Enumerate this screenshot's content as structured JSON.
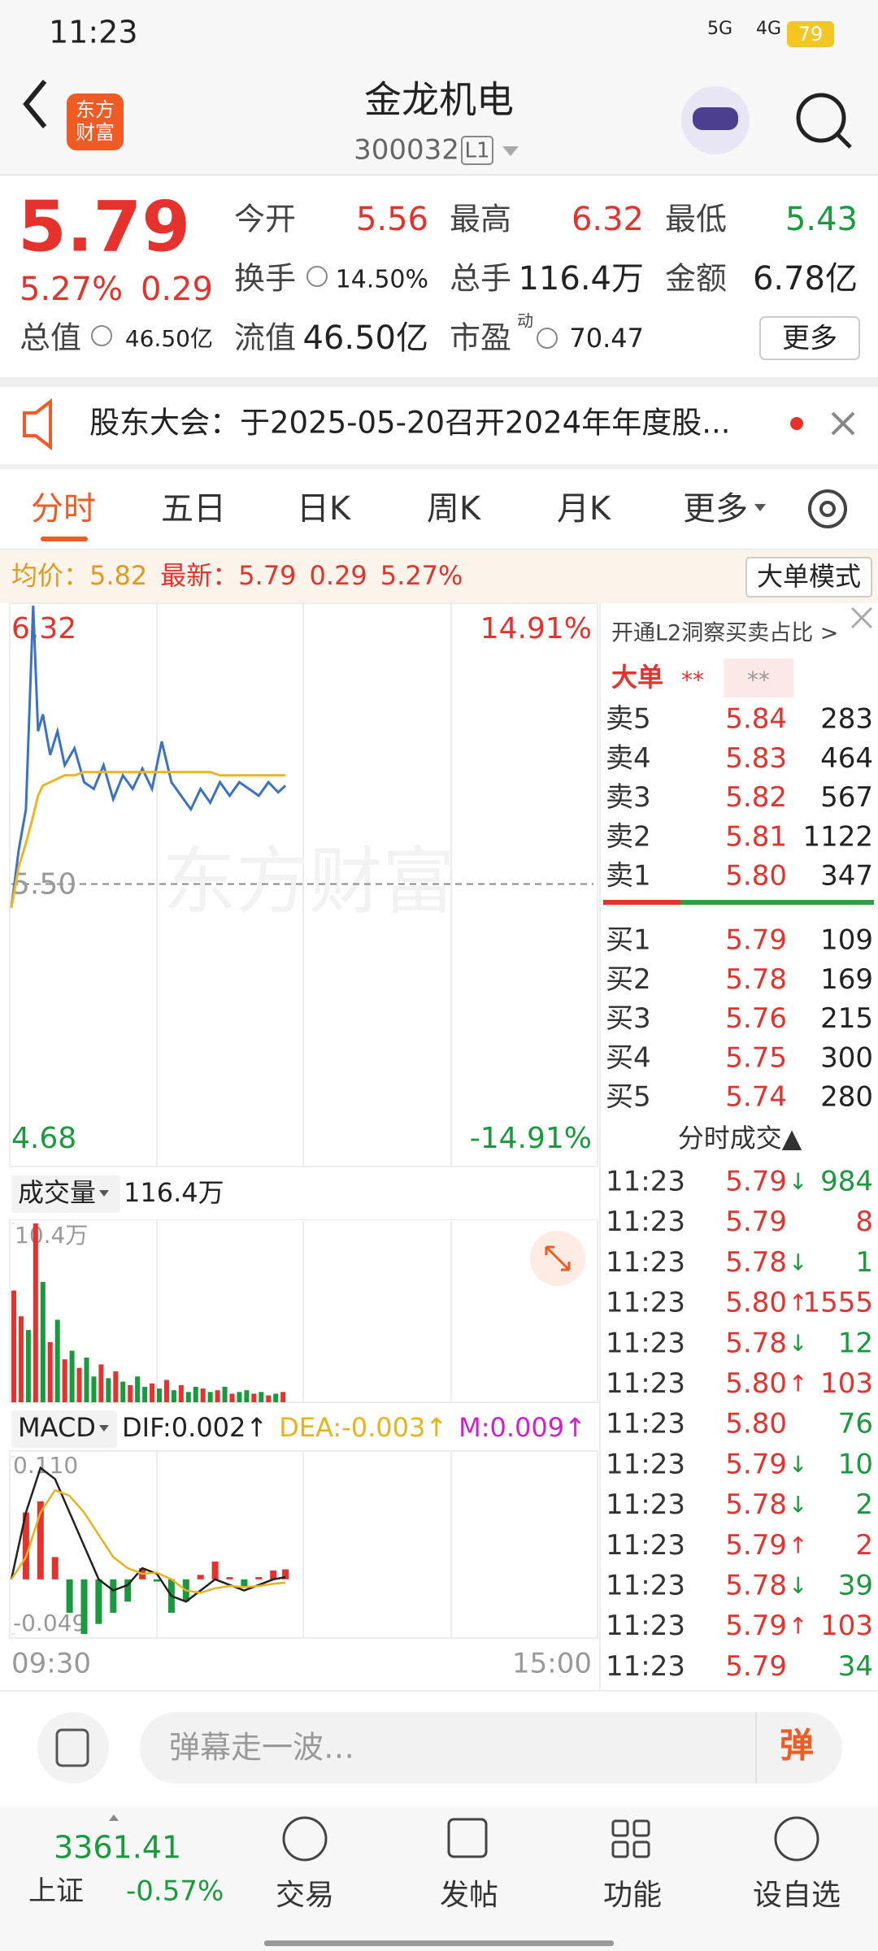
{
  "status_bar": {
    "time": "11:23",
    "net1": "5G",
    "net2": "4G",
    "battery": "79"
  },
  "header": {
    "logo": [
      "东方",
      "财富"
    ],
    "title": "金龙机电",
    "code": "300032",
    "level": "L1"
  },
  "quote": {
    "price": "5.79",
    "change_pct": "5.27%",
    "change": "0.29",
    "fields": [
      {
        "label": "今开",
        "value": "5.56",
        "color": "#e5322d"
      },
      {
        "label": "最高",
        "value": "6.32",
        "color": "#e5322d"
      },
      {
        "label": "最低",
        "value": "5.43",
        "color": "#199a3c"
      },
      {
        "label": "换手",
        "value": "14.50%",
        "color": "#222222"
      },
      {
        "label": "总手",
        "value": "116.4万",
        "color": "#222222"
      },
      {
        "label": "金额",
        "value": "6.78亿",
        "color": "#222222"
      },
      {
        "label": "总值",
        "value": "46.50亿",
        "color": "#222222"
      },
      {
        "label": "流值",
        "value": "46.50亿",
        "color": "#222222"
      },
      {
        "label": "市盈",
        "sup": "动",
        "value": "70.47",
        "color": "#222222"
      }
    ],
    "more": "更多"
  },
  "notice": "股东大会：于2025-05-20召开2024年年度股...",
  "tabs": [
    "分时",
    "五日",
    "日K",
    "周K",
    "月K",
    "更多"
  ],
  "summary": {
    "avg_label": "均价：",
    "avg": "5.82",
    "last_label": "最新：",
    "last": "5.79",
    "change": "0.29",
    "change_pct": "5.27%",
    "mode": "大单模式"
  },
  "watermark": "东方财富",
  "chart_data": [
    {
      "type": "line",
      "x": [
        0,
        3,
        6,
        9,
        11,
        13,
        16,
        19,
        22,
        26,
        30,
        34,
        38,
        42,
        46,
        50,
        54,
        58,
        62,
        66,
        70,
        74,
        78,
        82,
        86,
        90,
        94,
        98,
        102,
        106,
        110,
        113
      ],
      "xlim": [
        0,
        240
      ],
      "xticks": [
        {
          "value": 0,
          "label": "09:30"
        },
        {
          "value": 240,
          "label": "15:00"
        }
      ],
      "ylim": [
        4.68,
        6.32
      ],
      "yticks": [
        6.32,
        {
          "value": 5.5,
          "label": "5.50"
        },
        4.68
      ],
      "y2lim": [
        -14.91,
        14.91
      ],
      "y2ticks": [
        {
          "value": 14.91,
          "label": "14.91%"
        },
        {
          "value": -14.91,
          "label": "-14.91%"
        }
      ],
      "series": [
        {
          "color": "#3a72c6",
          "values": [
            5.43,
            5.6,
            5.72,
            6.32,
            5.95,
            6.0,
            5.88,
            5.95,
            5.85,
            5.9,
            5.8,
            5.78,
            5.85,
            5.75,
            5.82,
            5.78,
            5.84,
            5.78,
            5.92,
            5.8,
            5.76,
            5.72,
            5.78,
            5.74,
            5.8,
            5.76,
            5.8,
            5.78,
            5.76,
            5.8,
            5.77,
            5.79
          ]
        },
        {
          "color": "#efb426",
          "values": [
            5.43,
            5.55,
            5.62,
            5.7,
            5.76,
            5.79,
            5.8,
            5.81,
            5.82,
            5.82,
            5.83,
            5.83,
            5.83,
            5.83,
            5.83,
            5.83,
            5.83,
            5.83,
            5.83,
            5.83,
            5.83,
            5.83,
            5.83,
            5.83,
            5.82,
            5.82,
            5.82,
            5.82,
            5.82,
            5.82,
            5.82,
            5.82
          ]
        }
      ]
    },
    {
      "type": "bar",
      "label": "成交量",
      "total": "116.4万",
      "x": [
        0,
        3,
        6,
        9,
        12,
        15,
        18,
        21,
        24,
        27,
        30,
        33,
        36,
        39,
        42,
        45,
        48,
        51,
        54,
        57,
        60,
        63,
        66,
        69,
        72,
        75,
        78,
        81,
        84,
        87,
        90,
        93,
        96,
        99,
        102,
        105,
        108,
        111
      ],
      "values": [
        6.5,
        5.0,
        4.2,
        10.4,
        7.0,
        3.5,
        4.8,
        2.5,
        3.0,
        2.0,
        2.6,
        1.5,
        2.2,
        1.4,
        1.8,
        1.2,
        1.0,
        1.5,
        0.9,
        1.1,
        0.8,
        1.3,
        0.7,
        1.0,
        0.6,
        0.9,
        0.8,
        0.6,
        0.7,
        0.9,
        0.5,
        0.6,
        0.7,
        0.5,
        0.6,
        0.4,
        0.5,
        0.6
      ],
      "up": [
        true,
        true,
        false,
        true,
        false,
        true,
        false,
        true,
        false,
        true,
        false,
        false,
        true,
        false,
        true,
        false,
        true,
        false,
        false,
        true,
        false,
        true,
        false,
        true,
        false,
        false,
        true,
        false,
        true,
        false,
        true,
        false,
        false,
        true,
        false,
        true,
        false,
        true
      ],
      "up_color": "#e5322d",
      "down_color": "#199a3c",
      "xlim": [
        0,
        240
      ],
      "ylim": [
        0,
        10.4
      ],
      "yticks": [
        {
          "value": 10.4,
          "label": "10.4万"
        }
      ]
    },
    {
      "type": "macd",
      "label": "MACD",
      "dif_label": "DIF:0.002↑",
      "dea_label": "DEA:-0.003↑",
      "m_label": "M:0.009↑",
      "x": [
        0,
        6,
        12,
        18,
        24,
        30,
        36,
        42,
        48,
        54,
        60,
        66,
        72,
        78,
        84,
        90,
        96,
        102,
        108,
        113
      ],
      "dif": [
        0,
        0.06,
        0.1,
        0.09,
        0.06,
        0.03,
        0.0,
        -0.01,
        -0.005,
        0.01,
        0.005,
        -0.015,
        -0.02,
        -0.01,
        0.0,
        -0.005,
        -0.01,
        -0.005,
        0.0,
        0.002
      ],
      "dea": [
        0,
        0.02,
        0.06,
        0.08,
        0.075,
        0.06,
        0.04,
        0.02,
        0.01,
        0.005,
        0.006,
        0.0,
        -0.01,
        -0.012,
        -0.008,
        -0.006,
        -0.007,
        -0.006,
        -0.004,
        -0.003
      ],
      "m": [
        0,
        0.06,
        0.07,
        0.02,
        -0.03,
        -0.049,
        -0.04,
        -0.03,
        -0.02,
        0.01,
        -0.002,
        -0.03,
        -0.02,
        0.004,
        0.016,
        0.002,
        -0.006,
        0.002,
        0.008,
        0.009
      ],
      "dif_color": "#222222",
      "dea_color": "#e8b21b",
      "m_color": "#d01fd0",
      "up_color": "#e5322d",
      "down_color": "#199a3c",
      "xlim": [
        0,
        240
      ],
      "ylim": [
        -0.049,
        0.11
      ],
      "yticks": [
        {
          "value": 0.11,
          "label": "0.110"
        },
        -0.049
      ]
    }
  ],
  "order_book": {
    "banner": "开通L2洞察买卖占比 >",
    "big_label": "大单",
    "big_a": "**",
    "big_b": "**",
    "sell": [
      {
        "label": "卖5",
        "price": "5.84",
        "volume": "283"
      },
      {
        "label": "卖4",
        "price": "5.83",
        "volume": "464"
      },
      {
        "label": "卖3",
        "price": "5.82",
        "volume": "567"
      },
      {
        "label": "卖2",
        "price": "5.81",
        "volume": "1122"
      },
      {
        "label": "卖1",
        "price": "5.80",
        "volume": "347"
      }
    ],
    "buy": [
      {
        "label": "买1",
        "price": "5.79",
        "volume": "109"
      },
      {
        "label": "买2",
        "price": "5.78",
        "volume": "169"
      },
      {
        "label": "买3",
        "price": "5.76",
        "volume": "215"
      },
      {
        "label": "买4",
        "price": "5.75",
        "volume": "300"
      },
      {
        "label": "买5",
        "price": "5.74",
        "volume": "280"
      }
    ]
  },
  "trades": {
    "title": "分时成交▲",
    "rows": [
      {
        "time": "11:23",
        "price": "5.79",
        "arrow": "↓",
        "volume": "984",
        "color": "#199a3c"
      },
      {
        "time": "11:23",
        "price": "5.79",
        "volume": "8",
        "color": "#e5322d"
      },
      {
        "time": "11:23",
        "price": "5.78",
        "arrow": "↓",
        "volume": "1",
        "color": "#199a3c"
      },
      {
        "time": "11:23",
        "price": "5.80",
        "arrow": "↑",
        "volume": "1555",
        "color": "#e5322d"
      },
      {
        "time": "11:23",
        "price": "5.78",
        "arrow": "↓",
        "volume": "12",
        "color": "#199a3c"
      },
      {
        "time": "11:23",
        "price": "5.80",
        "arrow": "↑",
        "volume": "103",
        "color": "#e5322d"
      },
      {
        "time": "11:23",
        "price": "5.80",
        "volume": "76",
        "color": "#199a3c"
      },
      {
        "time": "11:23",
        "price": "5.79",
        "arrow": "↓",
        "volume": "10",
        "color": "#199a3c"
      },
      {
        "time": "11:23",
        "price": "5.78",
        "arrow": "↓",
        "volume": "2",
        "color": "#199a3c"
      },
      {
        "time": "11:23",
        "price": "5.79",
        "arrow": "↑",
        "volume": "2",
        "color": "#e5322d"
      },
      {
        "time": "11:23",
        "price": "5.78",
        "arrow": "↓",
        "volume": "39",
        "color": "#199a3c"
      },
      {
        "time": "11:23",
        "price": "5.79",
        "arrow": "↑",
        "volume": "103",
        "color": "#e5322d"
      },
      {
        "time": "11:23",
        "price": "5.79",
        "volume": "34",
        "color": "#199a3c"
      }
    ]
  },
  "comment": {
    "placeholder": "弹幕走一波…",
    "button": "弹"
  },
  "nav": {
    "index_value": "3361.41",
    "index_name": "上证",
    "index_change": "-0.57%",
    "items": [
      "交易",
      "发帖",
      "功能",
      "设自选"
    ]
  }
}
